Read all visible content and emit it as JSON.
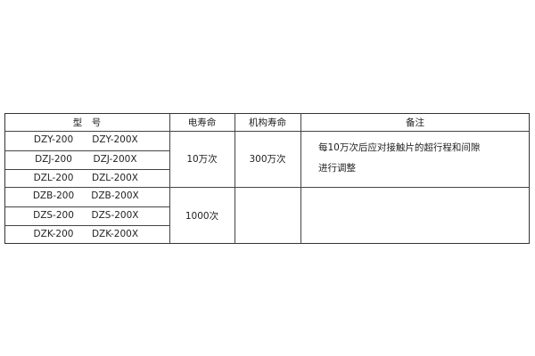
{
  "headers": {
    "model": "型　号",
    "electrical_life": "电寿命",
    "mechanical_life": "机构寿命",
    "remarks": "备注"
  },
  "rows": [
    {
      "model_a": "DZY-200",
      "model_b": "DZY-200X"
    },
    {
      "model_a": "DZJ-200",
      "model_b": "DZJ-200X"
    },
    {
      "model_a": "DZL-200",
      "model_b": "DZL-200X"
    },
    {
      "model_a": "DZB-200",
      "model_b": "DZB-200X"
    },
    {
      "model_a": "DZS-200",
      "model_b": "DZS-200X"
    },
    {
      "model_a": "DZK-200",
      "model_b": "DZK-200X"
    }
  ],
  "groups": [
    {
      "electrical_life": "10万次",
      "mechanical_life": "300万次",
      "remarks": [
        "每10万次后应对接触片的超行程和间隙",
        "进行调整"
      ]
    },
    {
      "electrical_life": "1000次",
      "mechanical_life": "",
      "remarks": []
    }
  ]
}
